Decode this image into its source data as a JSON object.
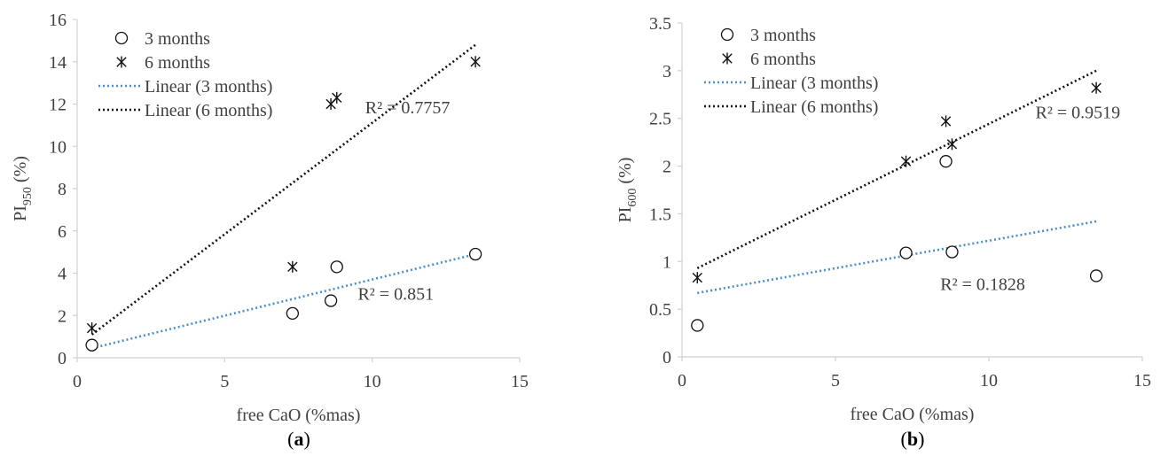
{
  "chart_data": [
    {
      "type": "scatter",
      "panel_label": "a",
      "xlabel": "free CaO (%mas)",
      "ylabel_main": "PI",
      "ylabel_sub": "950",
      "ylabel_unit": " (%)",
      "xlim": [
        0,
        15
      ],
      "ylim": [
        0,
        16
      ],
      "xticks": [
        0,
        5,
        10,
        15
      ],
      "yticks": [
        0,
        2,
        4,
        6,
        8,
        10,
        12,
        14,
        16
      ],
      "series": [
        {
          "name": "3 months",
          "marker": "circle",
          "points": [
            [
              0.5,
              0.6
            ],
            [
              7.3,
              2.1
            ],
            [
              8.6,
              2.7
            ],
            [
              8.8,
              4.3
            ],
            [
              13.5,
              4.9
            ]
          ]
        },
        {
          "name": "6 months",
          "marker": "asterisk",
          "points": [
            [
              0.5,
              1.4
            ],
            [
              7.3,
              4.3
            ],
            [
              8.6,
              12.0
            ],
            [
              8.8,
              12.3
            ],
            [
              13.5,
              14.0
            ]
          ]
        }
      ],
      "trendlines": [
        {
          "name": "Linear (3 months)",
          "color": "#4a8fc9",
          "from": [
            0.5,
            0.45
          ],
          "to": [
            13.5,
            4.9
          ],
          "r2_label": "R² = 0.851",
          "label_at": [
            10.8,
            2.75
          ]
        },
        {
          "name": "Linear (6 months)",
          "color": "#111111",
          "from": [
            0.5,
            1.1
          ],
          "to": [
            13.5,
            14.8
          ],
          "r2_label": "R² = 0.7757",
          "label_at": [
            11.2,
            11.55
          ]
        }
      ],
      "legend_position": "top-left"
    },
    {
      "type": "scatter",
      "panel_label": "b",
      "xlabel": "free CaO (%mas)",
      "ylabel_main": "PI",
      "ylabel_sub": "600",
      "ylabel_unit": " (%)",
      "xlim": [
        0,
        15
      ],
      "ylim": [
        0,
        3.5
      ],
      "xticks": [
        0,
        5,
        10,
        15
      ],
      "yticks": [
        0,
        0.5,
        1,
        1.5,
        2,
        2.5,
        3,
        3.5
      ],
      "series": [
        {
          "name": "3 months",
          "marker": "circle",
          "points": [
            [
              0.5,
              0.33
            ],
            [
              7.3,
              1.09
            ],
            [
              8.6,
              2.05
            ],
            [
              8.8,
              1.1
            ],
            [
              13.5,
              0.85
            ]
          ]
        },
        {
          "name": "6 months",
          "marker": "asterisk",
          "points": [
            [
              0.5,
              0.83
            ],
            [
              7.3,
              2.05
            ],
            [
              8.6,
              2.47
            ],
            [
              8.8,
              2.23
            ],
            [
              13.5,
              2.82
            ]
          ]
        }
      ],
      "trendlines": [
        {
          "name": "Linear (3 months)",
          "color": "#4a8fc9",
          "from": [
            0.5,
            0.67
          ],
          "to": [
            13.5,
            1.42
          ],
          "r2_label": "R² = 0.1828",
          "label_at": [
            9.8,
            0.7
          ]
        },
        {
          "name": "Linear (6 months)",
          "color": "#111111",
          "from": [
            0.5,
            0.93
          ],
          "to": [
            13.5,
            3.0
          ],
          "r2_label": "R² = 0.9519",
          "label_at": [
            12.9,
            2.5
          ]
        }
      ],
      "legend_position": "top-left"
    }
  ],
  "colors": {
    "axis": "#d0d0d0",
    "text": "#404040",
    "marker": "#111111"
  }
}
